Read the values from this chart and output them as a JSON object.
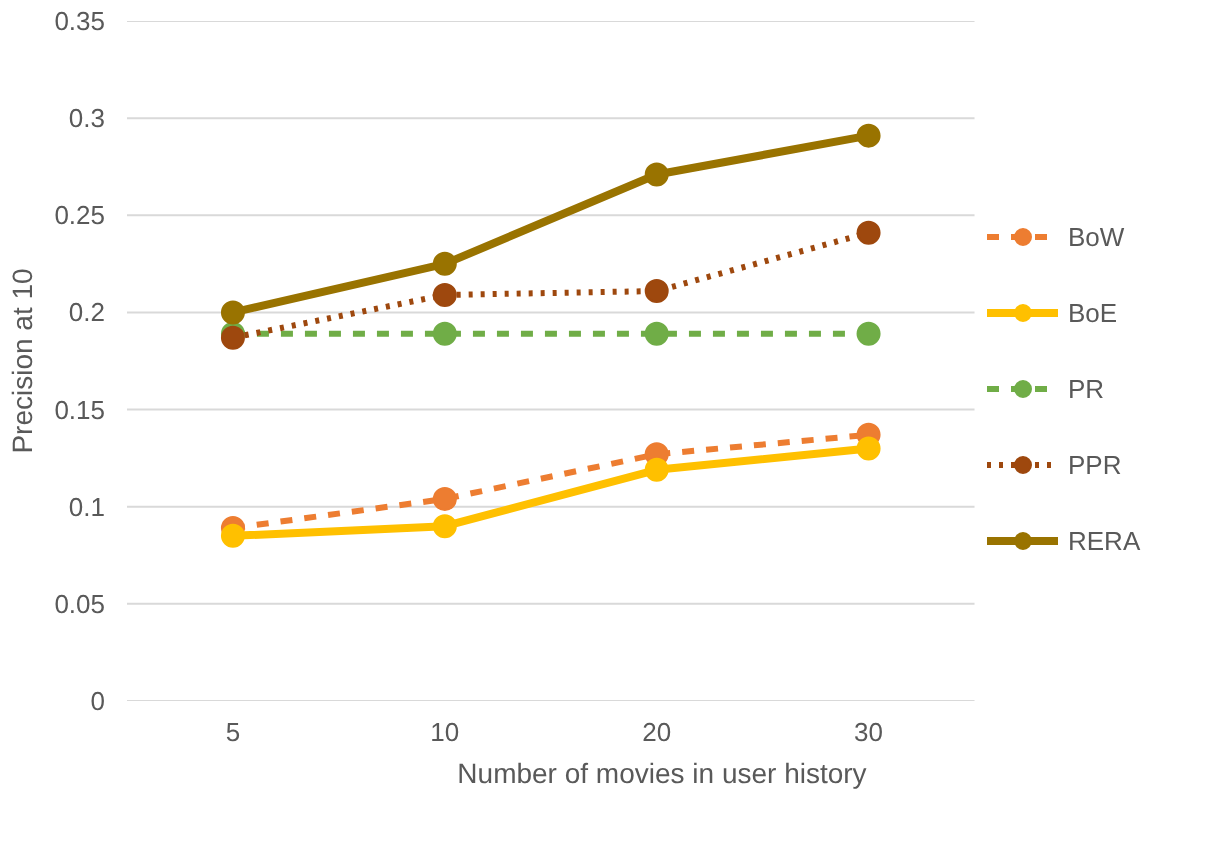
{
  "chart_data": {
    "type": "line",
    "xlabel": "Number of movies in user history",
    "ylabel": "Precision at 10",
    "categories": [
      "5",
      "10",
      "20",
      "30"
    ],
    "series": [
      {
        "name": "BoW",
        "color": "#ed7d31",
        "line_style": "dashed",
        "values": [
          0.089,
          0.104,
          0.127,
          0.137
        ]
      },
      {
        "name": "BoE",
        "color": "#ffc000",
        "line_style": "solid",
        "values": [
          0.085,
          0.09,
          0.119,
          0.13
        ]
      },
      {
        "name": "PR",
        "color": "#70ad47",
        "line_style": "dashed",
        "values": [
          0.189,
          0.189,
          0.189,
          0.189
        ]
      },
      {
        "name": "PPR",
        "color": "#9e480e",
        "line_style": "dotted",
        "values": [
          0.187,
          0.209,
          0.211,
          0.241
        ]
      },
      {
        "name": "RERA",
        "color": "#997300",
        "line_style": "solid",
        "values": [
          0.2,
          0.225,
          0.271,
          0.291
        ]
      }
    ],
    "ylim": [
      0,
      0.35
    ],
    "yticks": [
      0,
      0.05,
      0.1,
      0.15,
      0.2,
      0.25,
      0.3,
      0.35
    ],
    "grid": "y",
    "legend": "right",
    "marker": "circle"
  }
}
